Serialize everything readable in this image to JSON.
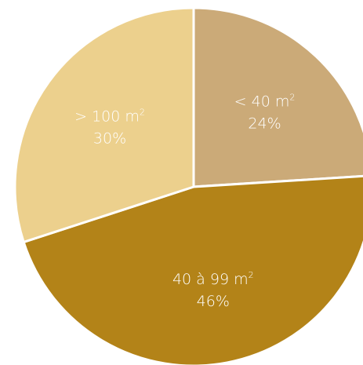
{
  "chart_data": {
    "type": "pie",
    "slices": [
      {
        "label_main": "< 40 m",
        "label_sup": "2",
        "percent_label": "24%",
        "value": 24,
        "color": "#cbaa78"
      },
      {
        "label_main": "40 à 99 m",
        "label_sup": "2",
        "percent_label": "46%",
        "value": 46,
        "color": "#b38318"
      },
      {
        "label_main": "> 100 m",
        "label_sup": "2",
        "percent_label": "30%",
        "value": 30,
        "color": "#ecd08d"
      }
    ],
    "start_angle_deg": 0,
    "direction": "clockwise",
    "separator_color": "#ffffff"
  }
}
